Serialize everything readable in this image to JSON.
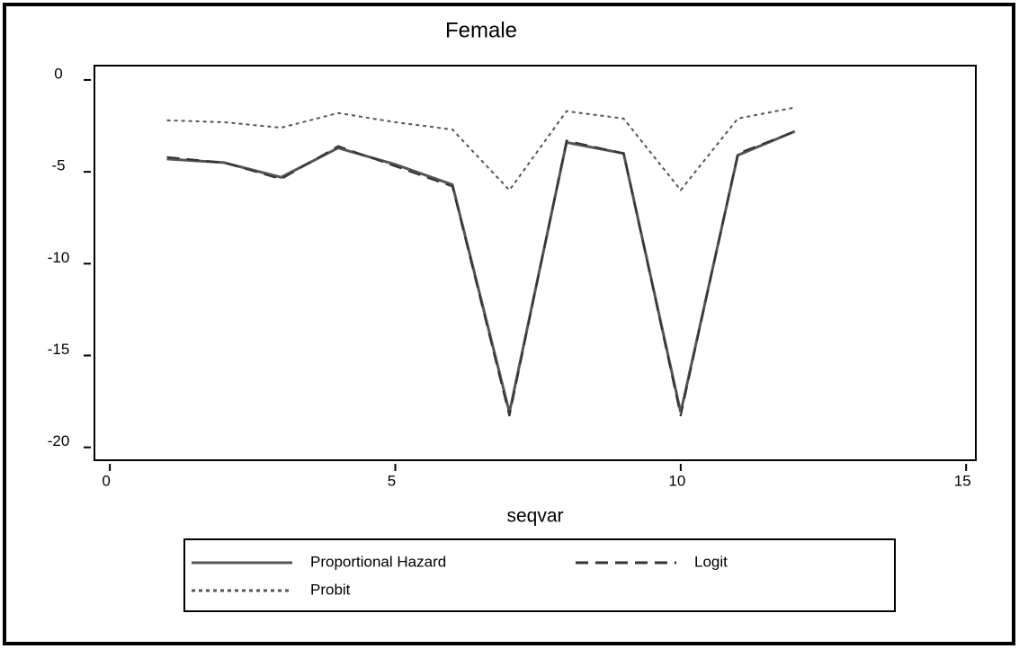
{
  "chart_data": {
    "type": "line",
    "title": "Female",
    "x_label": "seqvar",
    "x": [
      1,
      2,
      3,
      4,
      5,
      6,
      7,
      8,
      9,
      10,
      11,
      12
    ],
    "series": [
      {
        "name": "Proportional Hazard",
        "color": "#555555",
        "style": "solid",
        "values": [
          -4.3,
          -4.5,
          -5.3,
          -3.7,
          -4.6,
          -5.7,
          -18.1,
          -3.4,
          -4.0,
          -18.1,
          -4.1,
          -2.8
        ]
      },
      {
        "name": "Logit",
        "color": "#333333",
        "style": "dashed",
        "values": [
          -4.2,
          -4.5,
          -5.4,
          -3.6,
          -4.7,
          -5.8,
          -18.3,
          -3.3,
          -4.0,
          -18.3,
          -4.0,
          -2.8
        ]
      },
      {
        "name": "Probit",
        "color": "#555555",
        "style": "dotted",
        "values": [
          -2.2,
          -2.3,
          -2.6,
          -1.8,
          -2.3,
          -2.7,
          -6.0,
          -1.7,
          -2.1,
          -6.0,
          -2.1,
          -1.5
        ]
      }
    ],
    "xlim": [
      -0.27,
      15.17
    ],
    "xticks": [
      0,
      5,
      10,
      15
    ],
    "ylim": [
      -20.7,
      0.78
    ],
    "yticks": [
      0,
      -5,
      -10,
      -15,
      -20
    ],
    "legend": "bottom"
  }
}
